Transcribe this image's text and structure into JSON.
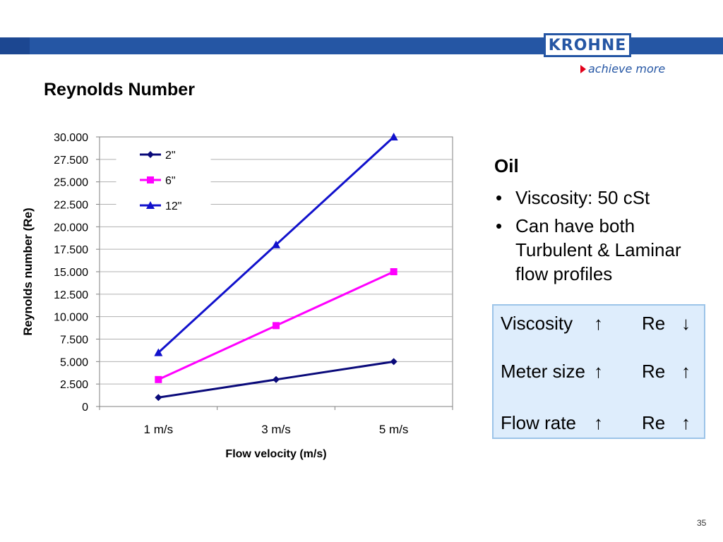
{
  "header": {
    "logo_text": "KROHNE",
    "tagline": "achieve more",
    "bar_color": "#2556a4"
  },
  "page_title": "Reynolds Number",
  "chart_data": {
    "type": "line",
    "title": "",
    "xlabel": "Flow velocity (m/s)",
    "ylabel": "Reynolds number (Re)",
    "categories": [
      "1 m/s",
      "3 m/s",
      "5 m/s"
    ],
    "ylim": [
      0,
      30000
    ],
    "ytick_step": 2500,
    "yticks": [
      "0",
      "2.500",
      "5.000",
      "7.500",
      "10.000",
      "12.500",
      "15.000",
      "17.500",
      "20.000",
      "22.500",
      "25.000",
      "27.500",
      "30.000"
    ],
    "grid": true,
    "legend_position": "top-left",
    "series": [
      {
        "name": "2\"",
        "values": [
          1000,
          3000,
          5000
        ],
        "color": "#0a0a7a",
        "marker": "diamond"
      },
      {
        "name": "6\"",
        "values": [
          3000,
          9000,
          15000
        ],
        "color": "#ff00ff",
        "marker": "square"
      },
      {
        "name": "12\"",
        "values": [
          6000,
          18000,
          30000
        ],
        "color": "#1111cc",
        "marker": "triangle"
      }
    ]
  },
  "oil": {
    "title": "Oil",
    "bullets": [
      "Viscosity: 50 cSt",
      "Can have both Turbulent & Laminar flow profiles"
    ]
  },
  "relations": [
    {
      "label": "Viscosity",
      "arrow1": "↑",
      "re": "Re",
      "arrow2": "↓"
    },
    {
      "label": "Meter size",
      "arrow1": "↑",
      "re": "Re",
      "arrow2": "↑"
    },
    {
      "label": "Flow rate",
      "arrow1": "↑",
      "re": "Re",
      "arrow2": "↑"
    }
  ],
  "page_number": "35"
}
